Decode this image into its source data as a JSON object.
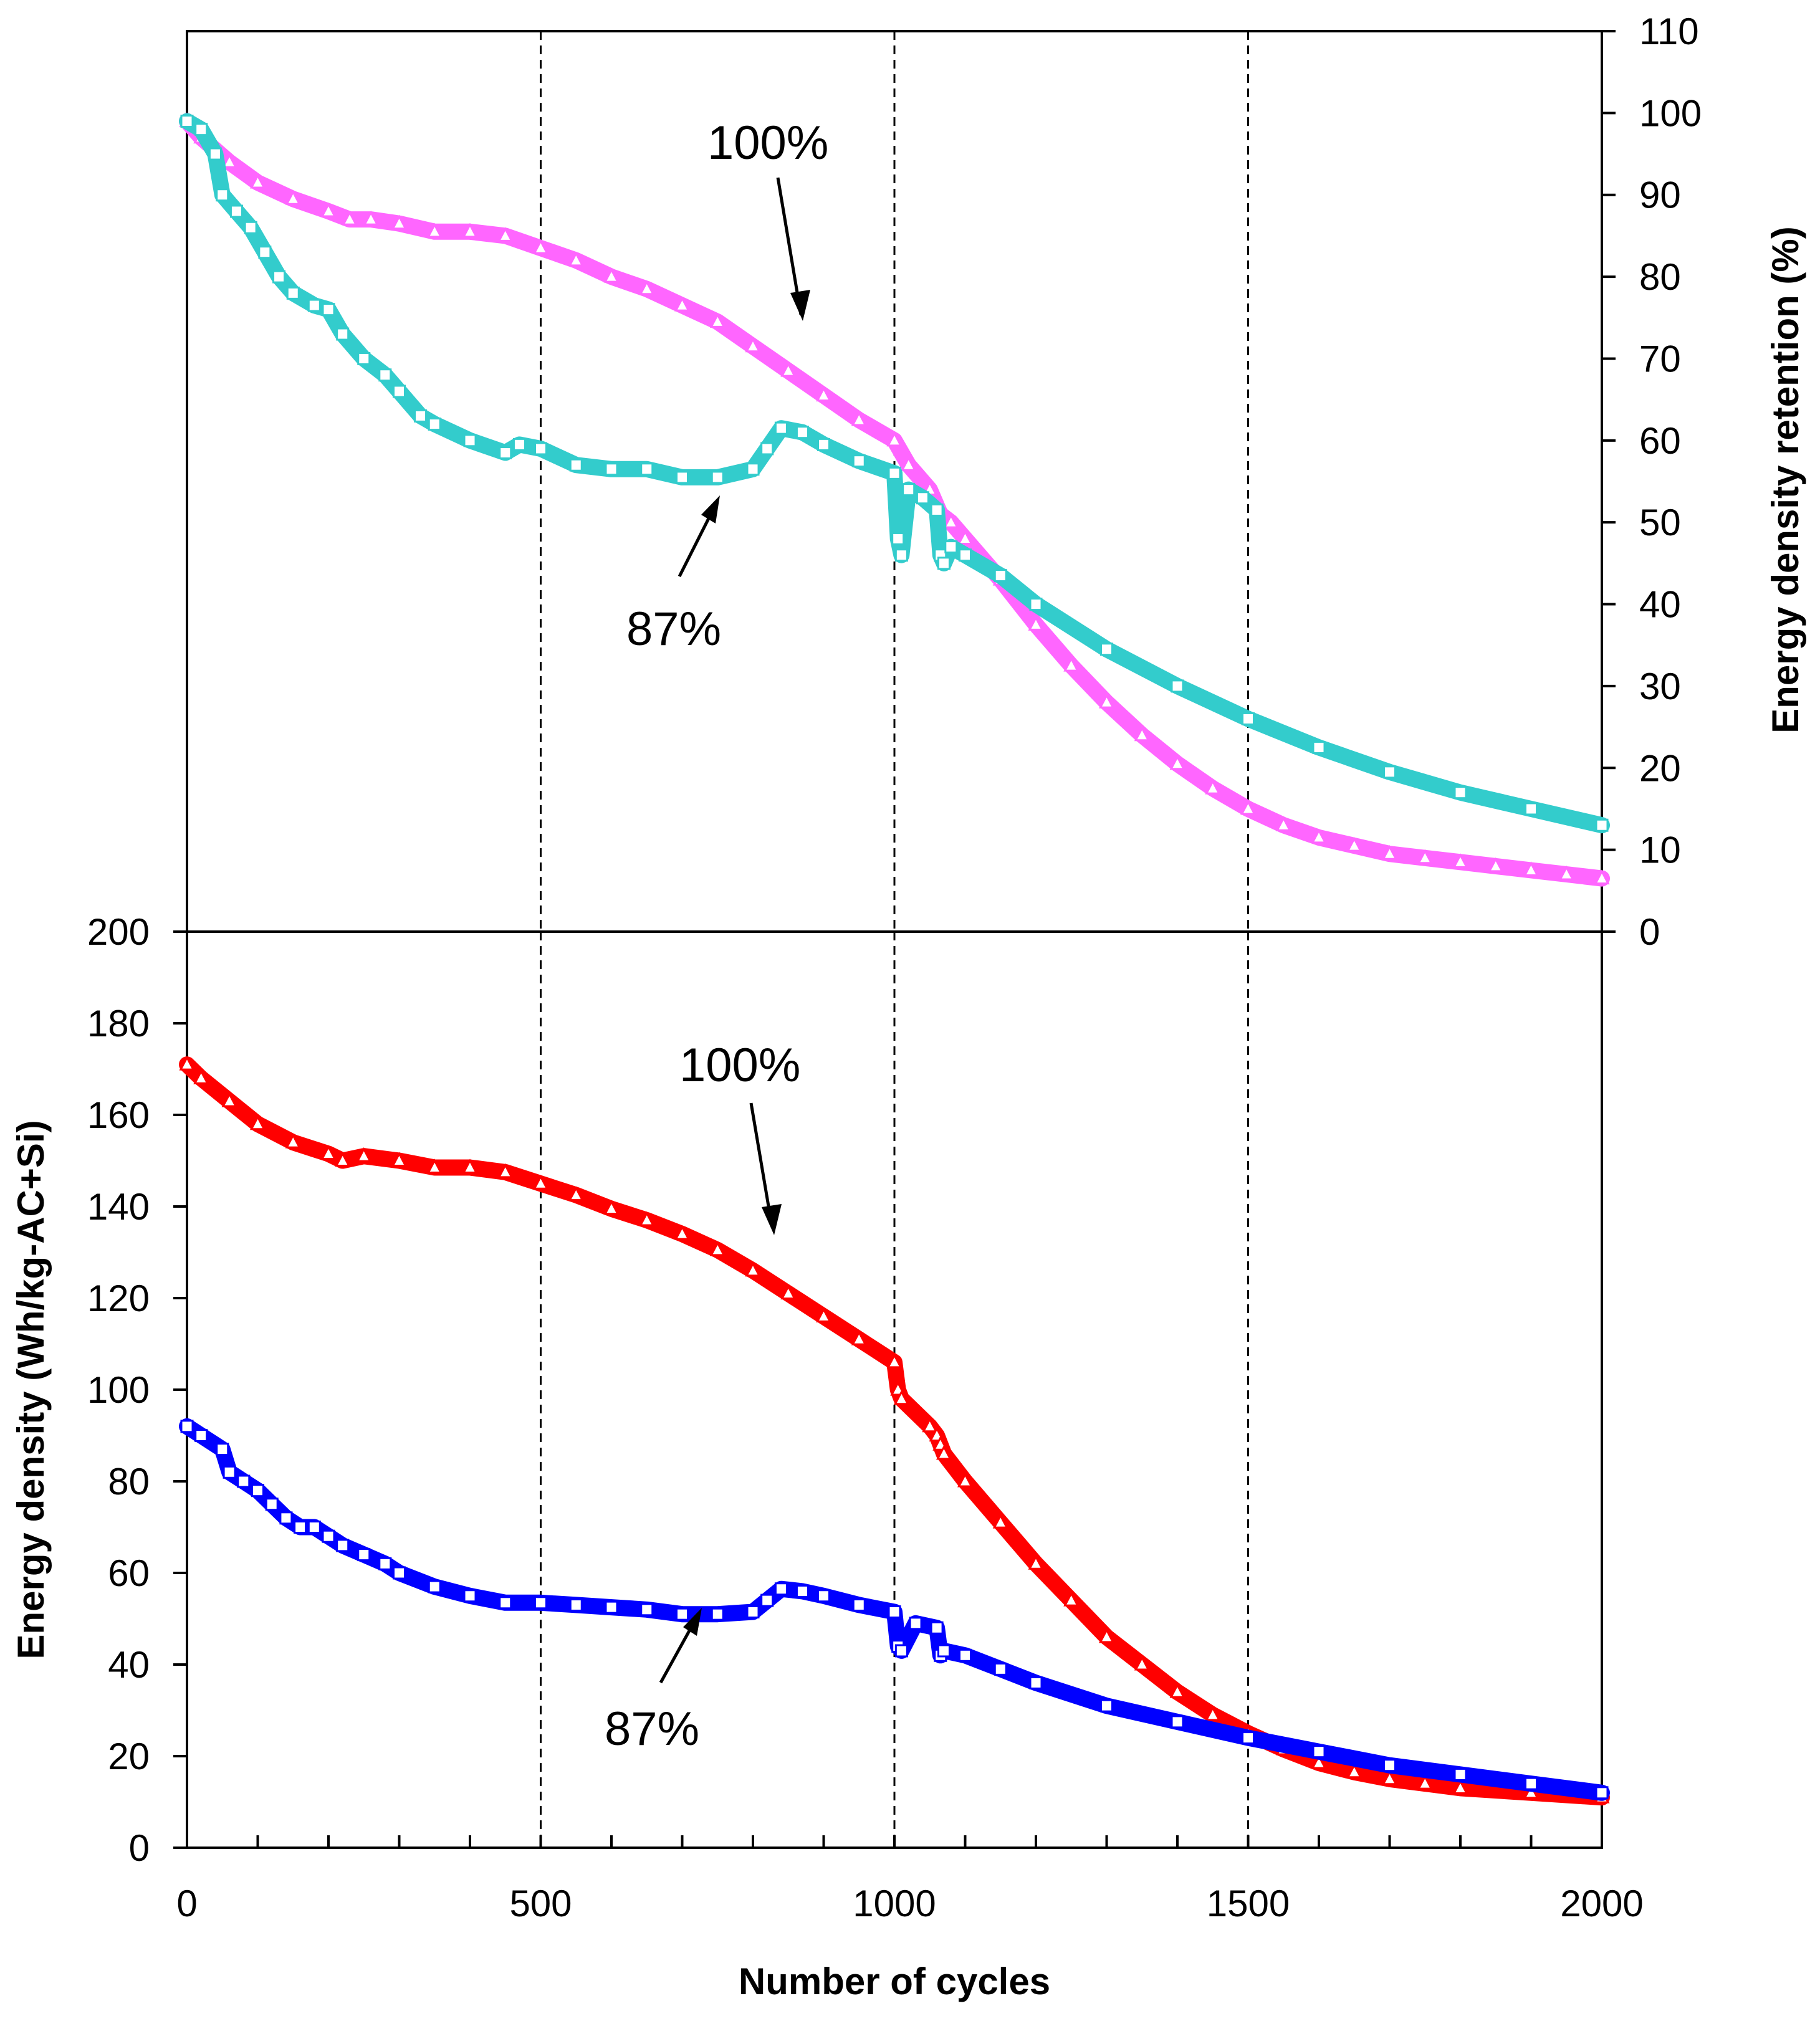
{
  "chart_data": [
    {
      "type": "scatter",
      "panel": "top",
      "title": "",
      "xlabel": "Number of cycles",
      "ylabel": "Energy density retention (%)",
      "y_axis_side": "right",
      "xlim": [
        0,
        2000
      ],
      "ylim": [
        0,
        110
      ],
      "x_ticks": [
        "0",
        "500",
        "1000",
        "1500",
        "2000"
      ],
      "y_ticks": [
        "0",
        "10",
        "20",
        "30",
        "40",
        "50",
        "60",
        "70",
        "80",
        "90",
        "100",
        "110"
      ],
      "reference_lines_x": [
        500,
        1000,
        1500
      ],
      "grid": false,
      "series": [
        {
          "name": "100%",
          "marker": "triangle",
          "color": "#ff66ff",
          "x": [
            0,
            20,
            60,
            100,
            150,
            200,
            230,
            260,
            300,
            350,
            400,
            450,
            500,
            550,
            600,
            650,
            700,
            750,
            800,
            850,
            900,
            950,
            1000,
            1020,
            1050,
            1065,
            1080,
            1100,
            1150,
            1200,
            1250,
            1300,
            1350,
            1400,
            1450,
            1500,
            1550,
            1600,
            1650,
            1700,
            1750,
            1800,
            1850,
            1900,
            1950,
            2000
          ],
          "values": [
            99,
            97,
            94,
            91.5,
            89.5,
            88,
            87,
            87,
            86.5,
            85.5,
            85.5,
            85,
            83.5,
            82,
            80,
            78.5,
            76.5,
            74.5,
            71.5,
            68.5,
            65.5,
            62.5,
            60,
            57,
            54,
            51,
            50,
            48,
            43,
            37.5,
            32.5,
            28,
            24,
            20.5,
            17.5,
            15,
            13,
            11.5,
            10.5,
            9.5,
            9,
            8.5,
            8,
            7.5,
            7,
            6.5
          ],
          "end_label": "100%"
        },
        {
          "name": "87%",
          "marker": "square",
          "color": "#33cccc",
          "x": [
            0,
            20,
            40,
            50,
            70,
            90,
            110,
            130,
            150,
            180,
            200,
            220,
            250,
            280,
            300,
            330,
            350,
            400,
            450,
            470,
            500,
            550,
            600,
            650,
            700,
            750,
            800,
            820,
            840,
            870,
            900,
            950,
            1000,
            1005,
            1010,
            1020,
            1040,
            1060,
            1065,
            1070,
            1080,
            1100,
            1150,
            1200,
            1300,
            1400,
            1500,
            1600,
            1700,
            1800,
            1900,
            2000
          ],
          "values": [
            99,
            98,
            95,
            90,
            88,
            86,
            83,
            80,
            78,
            76.5,
            76,
            73,
            70,
            68,
            66,
            63,
            62,
            60,
            58.5,
            59.5,
            59,
            57,
            56.5,
            56.5,
            55.5,
            55.5,
            56.5,
            59,
            61.5,
            61,
            59.5,
            57.5,
            56,
            48,
            46,
            54,
            53,
            51.5,
            46,
            45,
            47,
            46,
            43.5,
            40,
            34.5,
            30,
            26,
            22.5,
            19.5,
            17,
            15,
            13
          ],
          "end_label": "87%"
        }
      ],
      "annotations": [
        "100%",
        "87%"
      ]
    },
    {
      "type": "scatter",
      "panel": "bottom",
      "title": "",
      "xlabel": "Number of cycles",
      "ylabel": "Energy density (Wh/kg-AC+Si)",
      "y_axis_side": "left",
      "xlim": [
        0,
        2000
      ],
      "ylim": [
        0,
        200
      ],
      "x_ticks": [
        "0",
        "500",
        "1000",
        "1500",
        "2000"
      ],
      "y_ticks": [
        "0",
        "20",
        "40",
        "60",
        "80",
        "100",
        "120",
        "140",
        "160",
        "180",
        "200"
      ],
      "reference_lines_x": [
        500,
        1000,
        1500
      ],
      "grid": false,
      "series": [
        {
          "name": "100%",
          "marker": "triangle",
          "color": "#ff0000",
          "x": [
            0,
            20,
            60,
            100,
            150,
            200,
            220,
            250,
            300,
            350,
            400,
            450,
            500,
            550,
            600,
            650,
            700,
            750,
            800,
            850,
            900,
            950,
            1000,
            1005,
            1010,
            1050,
            1060,
            1065,
            1070,
            1100,
            1150,
            1200,
            1250,
            1300,
            1350,
            1400,
            1450,
            1500,
            1550,
            1600,
            1650,
            1700,
            1750,
            1800,
            1900,
            2000
          ],
          "values": [
            171,
            168,
            163,
            158,
            154,
            151.5,
            150,
            151,
            150,
            148.5,
            148.5,
            147.5,
            145,
            142.5,
            139.5,
            137,
            134,
            130.5,
            126,
            121,
            116,
            111,
            106,
            100,
            98,
            92,
            90,
            88,
            86,
            80,
            71,
            62,
            54,
            46,
            40,
            34,
            29,
            25,
            21.5,
            18.5,
            16.5,
            15,
            14,
            13,
            12,
            11
          ],
          "end_label": "100%"
        },
        {
          "name": "87%",
          "marker": "square",
          "color": "#0000ff",
          "x": [
            0,
            20,
            50,
            60,
            80,
            100,
            120,
            140,
            160,
            180,
            200,
            220,
            250,
            280,
            300,
            350,
            400,
            450,
            500,
            550,
            600,
            650,
            700,
            750,
            800,
            820,
            840,
            870,
            900,
            950,
            1000,
            1005,
            1010,
            1030,
            1060,
            1065,
            1070,
            1100,
            1150,
            1200,
            1300,
            1400,
            1500,
            1600,
            1700,
            1800,
            1900,
            2000
          ],
          "values": [
            92,
            90,
            87,
            82,
            80,
            78,
            75,
            72,
            70,
            70,
            68,
            66,
            64,
            62,
            60,
            57,
            55,
            53.5,
            53.5,
            53,
            52.5,
            52,
            51,
            51,
            51.5,
            54,
            56.5,
            56,
            55,
            53,
            51.5,
            44,
            43,
            49,
            48,
            42,
            43,
            42,
            39,
            36,
            31,
            27.5,
            24,
            21,
            18,
            16,
            14,
            12
          ],
          "end_label": "87%"
        }
      ],
      "annotations": [
        "100%",
        "87%"
      ]
    }
  ]
}
